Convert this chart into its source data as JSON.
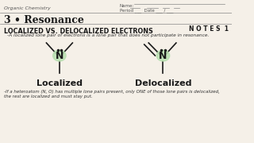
{
  "bg_color": "#f5f0e8",
  "header_left": "Organic Chemistry",
  "header_right_name": "Name:",
  "header_right_period": "Period ___  Date ___ / ___",
  "title": "3 • Resonance",
  "notes_label": "N O T E S  1",
  "section_title": "LOCALIZED VS. DELOCALIZED ELECTRONS",
  "subtitle": "-A localized lone pair of electrons is a lone pair that does not participate in resonance.",
  "label_localized": "Localized",
  "label_delocalized": "Delocalized",
  "footnote": "-If a heteroatom (N, O) has multiple lone pairs present, only ONE of those lone pairs is delocalized,\nthe rest are localized and must stay put.",
  "highlight_color": "#b8e0b0",
  "line_color": "#1a1a1a"
}
